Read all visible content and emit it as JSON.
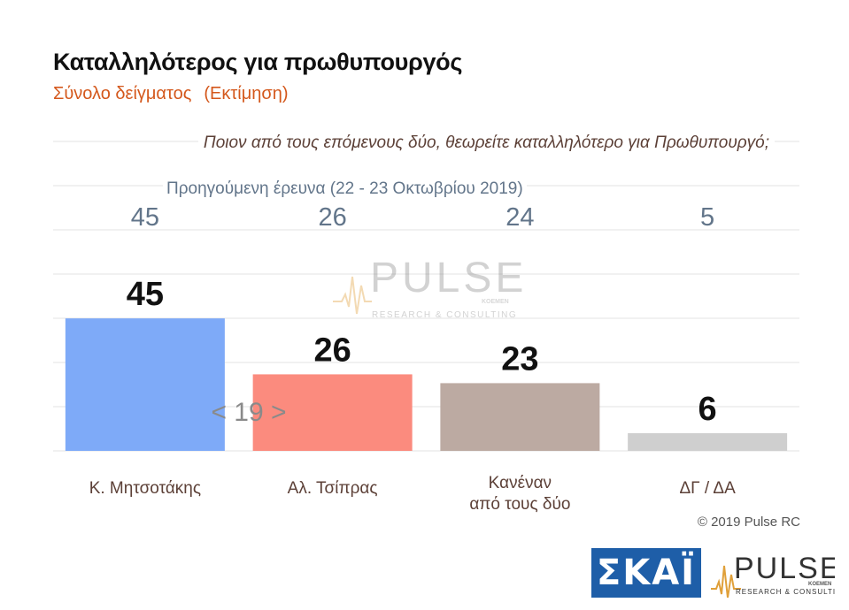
{
  "header": {
    "title": "Καταλληλότερος για πρωθυπουργός",
    "subtitle": "Σύνολο δείγματος",
    "subtitle_estimate": "(Εκτίμηση)"
  },
  "question": "Ποιον από τους επόμενους δύο, θεωρείτε καταλληλότερο για Πρωθυπουργό;",
  "previous_survey_caption": "Προηγούμενη έρευνα  (22 - 23  Οκτωβρίου  2019)",
  "chart_data": {
    "type": "bar",
    "categories": [
      [
        "Κ. Μητσοτάκης"
      ],
      [
        "Αλ. Τσίπρας"
      ],
      [
        "Κανέναν",
        "από τους δύο"
      ],
      [
        "ΔΓ / ΔΑ"
      ]
    ],
    "values": [
      45,
      26,
      23,
      6
    ],
    "previous_values": [
      45,
      26,
      24,
      5
    ],
    "colors": [
      "#7eaaf8",
      "#fb8b7e",
      "#bcaaa2",
      "#cfcfcf"
    ],
    "difference_annotation": "< 19 >",
    "ylim": [
      0,
      60
    ],
    "grid": true
  },
  "copyright": "© 2019 Pulse RC",
  "logos": {
    "skai": "ΣΚΑΪ",
    "pulse": "PULSE",
    "pulse_tagline": "RESEARCH & CONSULTING",
    "pulse_small": "KOEMEN"
  },
  "watermark": {
    "name": "PULSE",
    "tagline": "RESEARCH & CONSULTING",
    "small": "KOEMEN"
  }
}
